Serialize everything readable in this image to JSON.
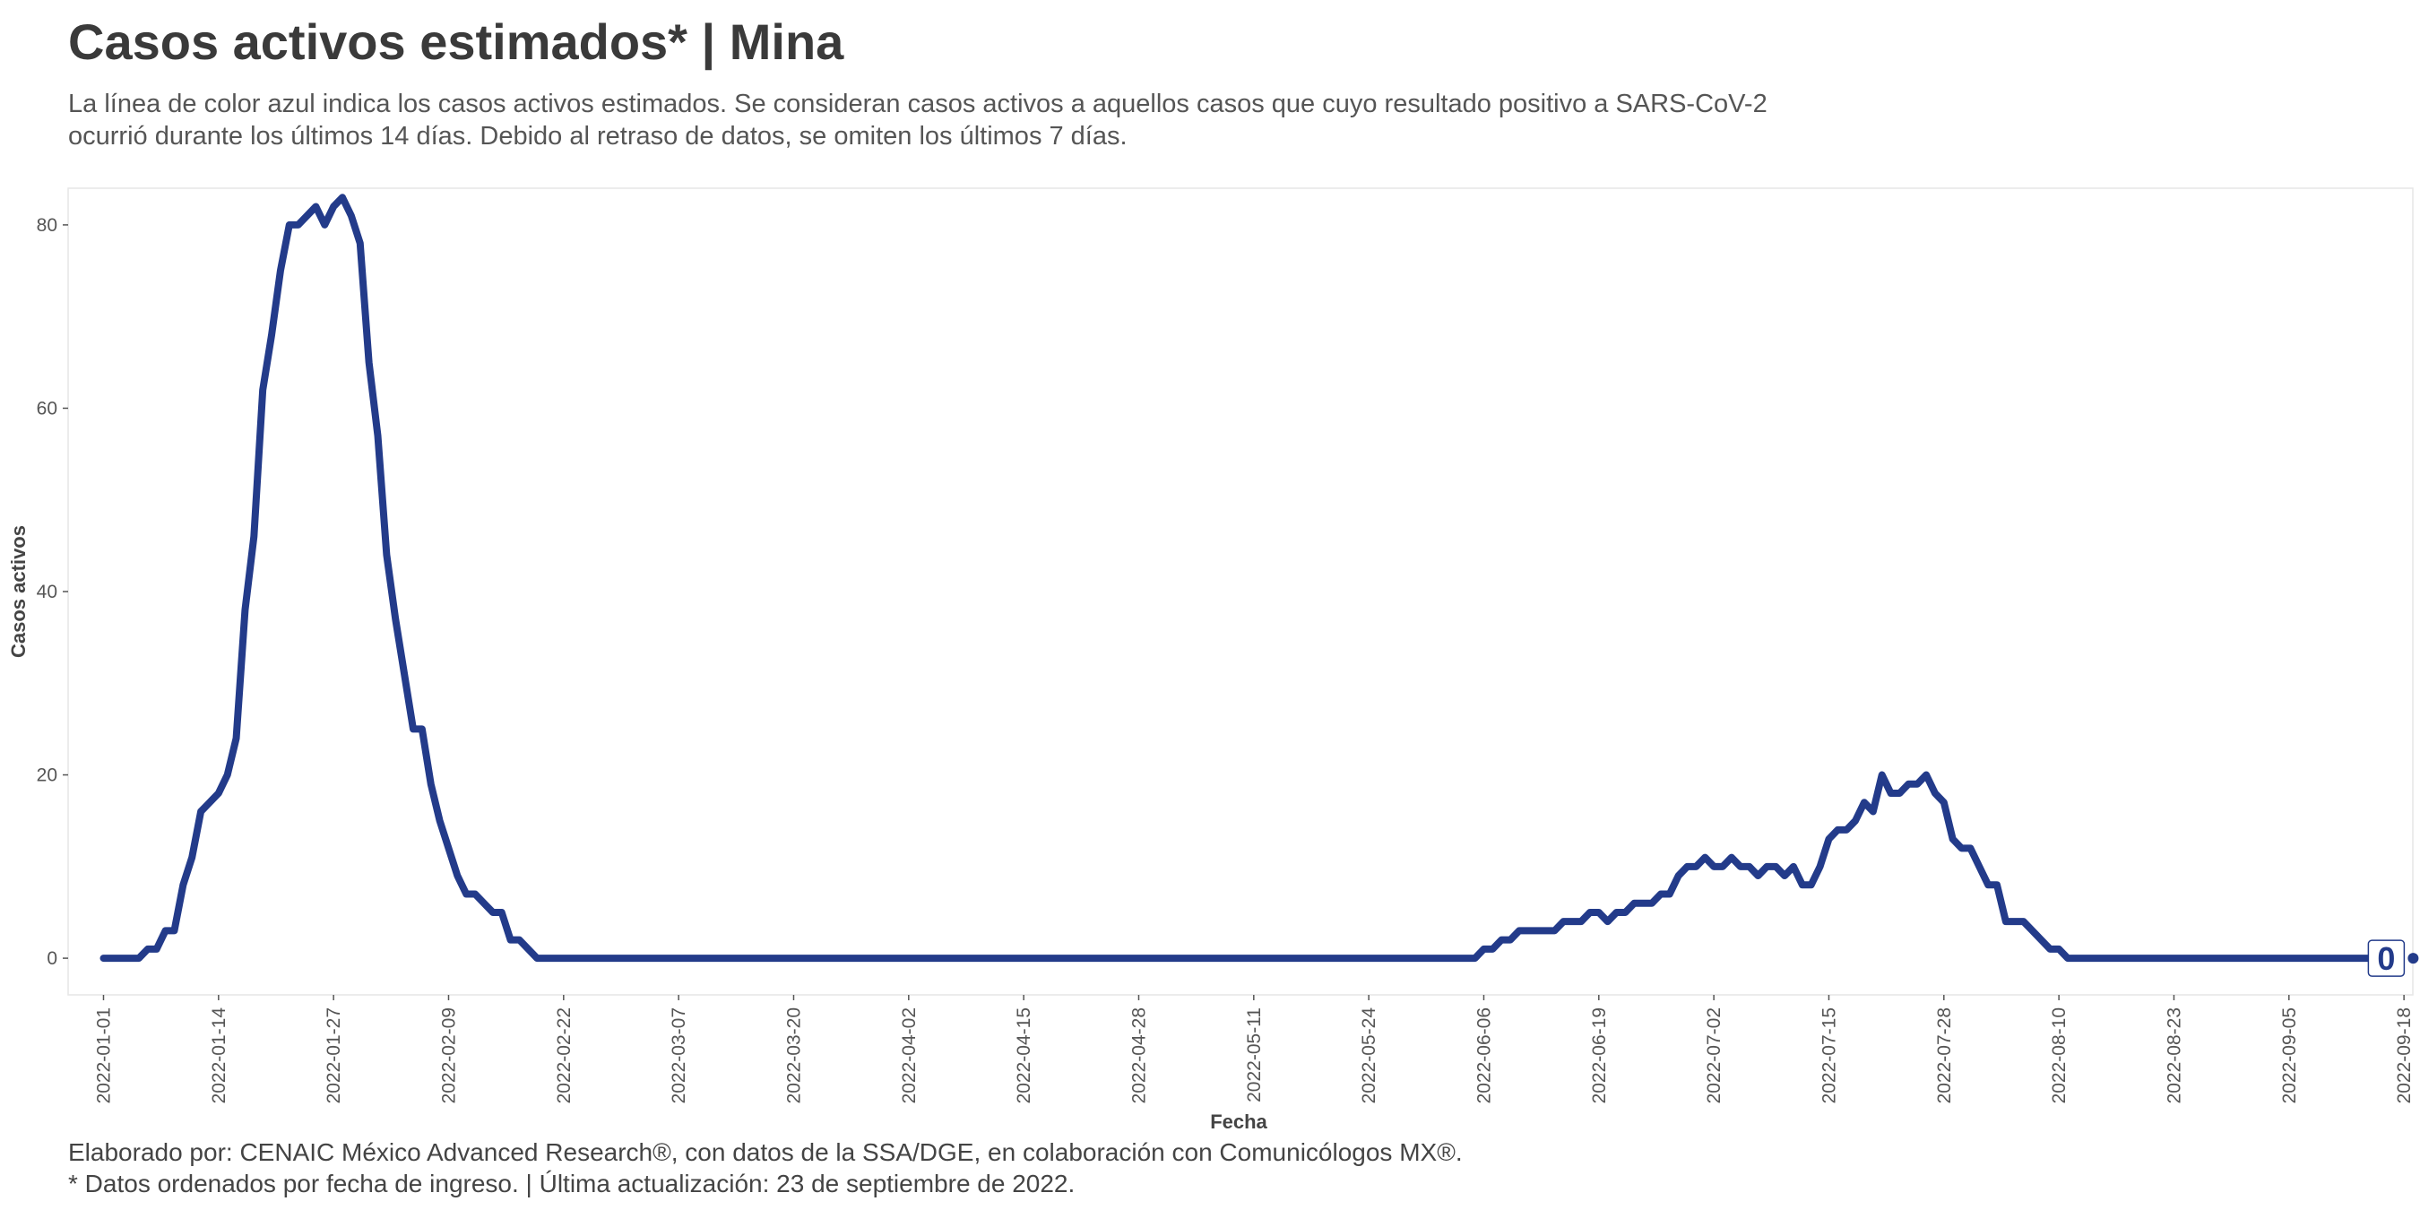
{
  "header": {
    "title": "Casos activos estimados* | Mina",
    "subtitle": "La línea de color azul indica los casos activos estimados. Se consideran casos activos a aquellos casos que cuyo resultado positivo a SARS-CoV-2 ocurrió durante los últimos 14 días. Debido al retraso de datos, se omiten los últimos 7 días."
  },
  "footer": {
    "line1": "Elaborado por: CENAIC México Advanced Research®, con datos de la SSA/DGE, en colaboración con Comunicólogos MX®.",
    "line2": "* Datos ordenados por fecha de ingreso. | Última actualización: 23 de septiembre de 2022."
  },
  "colors": {
    "line": "#233b8a",
    "panel_border": "#e6e6e6",
    "text": "#3d3d3d"
  },
  "chart_data": {
    "type": "line",
    "title": "Casos activos estimados* | Mina",
    "xlabel": "Fecha",
    "ylabel": "Casos activos",
    "ylim": [
      -4,
      84
    ],
    "y_ticks": [
      "0",
      "20",
      "40",
      "60",
      "80"
    ],
    "x_ticks": [
      "2022-01-01",
      "2022-01-14",
      "2022-01-27",
      "2022-02-09",
      "2022-02-22",
      "2022-03-07",
      "2022-03-20",
      "2022-04-02",
      "2022-04-15",
      "2022-04-28",
      "2022-05-11",
      "2022-05-24",
      "2022-06-06",
      "2022-06-19",
      "2022-07-02",
      "2022-07-15",
      "2022-07-28",
      "2022-08-10",
      "2022-08-23",
      "2022-09-05",
      "2022-09-18"
    ],
    "x_range": [
      "2021-12-28",
      "2022-09-19"
    ],
    "grid": false,
    "end_label": "0",
    "series": [
      {
        "points": [
          [
            "2022-01-01",
            0
          ],
          [
            "2022-01-05",
            0
          ],
          [
            "2022-01-06",
            1
          ],
          [
            "2022-01-07",
            1
          ],
          [
            "2022-01-08",
            3
          ],
          [
            "2022-01-09",
            3
          ],
          [
            "2022-01-10",
            8
          ],
          [
            "2022-01-11",
            11
          ],
          [
            "2022-01-12",
            16
          ],
          [
            "2022-01-13",
            17
          ],
          [
            "2022-01-14",
            18
          ],
          [
            "2022-01-15",
            20
          ],
          [
            "2022-01-16",
            24
          ],
          [
            "2022-01-17",
            38
          ],
          [
            "2022-01-18",
            46
          ],
          [
            "2022-01-19",
            62
          ],
          [
            "2022-01-20",
            68
          ],
          [
            "2022-01-21",
            75
          ],
          [
            "2022-01-22",
            80
          ],
          [
            "2022-01-23",
            80
          ],
          [
            "2022-01-24",
            81
          ],
          [
            "2022-01-25",
            82
          ],
          [
            "2022-01-26",
            80
          ],
          [
            "2022-01-27",
            82
          ],
          [
            "2022-01-28",
            83
          ],
          [
            "2022-01-29",
            81
          ],
          [
            "2022-01-30",
            78
          ],
          [
            "2022-01-31",
            65
          ],
          [
            "2022-02-01",
            57
          ],
          [
            "2022-02-02",
            44
          ],
          [
            "2022-02-03",
            37
          ],
          [
            "2022-02-04",
            31
          ],
          [
            "2022-02-05",
            25
          ],
          [
            "2022-02-06",
            25
          ],
          [
            "2022-02-07",
            19
          ],
          [
            "2022-02-08",
            15
          ],
          [
            "2022-02-09",
            12
          ],
          [
            "2022-02-10",
            9
          ],
          [
            "2022-02-11",
            7
          ],
          [
            "2022-02-12",
            7
          ],
          [
            "2022-02-13",
            6
          ],
          [
            "2022-02-14",
            5
          ],
          [
            "2022-02-15",
            5
          ],
          [
            "2022-02-16",
            2
          ],
          [
            "2022-02-17",
            2
          ],
          [
            "2022-02-18",
            1
          ],
          [
            "2022-02-19",
            0
          ],
          [
            "2022-06-05",
            0
          ],
          [
            "2022-06-06",
            1
          ],
          [
            "2022-06-07",
            1
          ],
          [
            "2022-06-08",
            2
          ],
          [
            "2022-06-09",
            2
          ],
          [
            "2022-06-10",
            3
          ],
          [
            "2022-06-11",
            3
          ],
          [
            "2022-06-12",
            3
          ],
          [
            "2022-06-13",
            3
          ],
          [
            "2022-06-14",
            3
          ],
          [
            "2022-06-15",
            4
          ],
          [
            "2022-06-16",
            4
          ],
          [
            "2022-06-17",
            4
          ],
          [
            "2022-06-18",
            5
          ],
          [
            "2022-06-19",
            5
          ],
          [
            "2022-06-20",
            4
          ],
          [
            "2022-06-21",
            5
          ],
          [
            "2022-06-22",
            5
          ],
          [
            "2022-06-23",
            6
          ],
          [
            "2022-06-24",
            6
          ],
          [
            "2022-06-25",
            6
          ],
          [
            "2022-06-26",
            7
          ],
          [
            "2022-06-27",
            7
          ],
          [
            "2022-06-28",
            9
          ],
          [
            "2022-06-29",
            10
          ],
          [
            "2022-06-30",
            10
          ],
          [
            "2022-07-01",
            11
          ],
          [
            "2022-07-02",
            10
          ],
          [
            "2022-07-03",
            10
          ],
          [
            "2022-07-04",
            11
          ],
          [
            "2022-07-05",
            10
          ],
          [
            "2022-07-06",
            10
          ],
          [
            "2022-07-07",
            9
          ],
          [
            "2022-07-08",
            10
          ],
          [
            "2022-07-09",
            10
          ],
          [
            "2022-07-10",
            9
          ],
          [
            "2022-07-11",
            10
          ],
          [
            "2022-07-12",
            8
          ],
          [
            "2022-07-13",
            8
          ],
          [
            "2022-07-14",
            10
          ],
          [
            "2022-07-15",
            13
          ],
          [
            "2022-07-16",
            14
          ],
          [
            "2022-07-17",
            14
          ],
          [
            "2022-07-18",
            15
          ],
          [
            "2022-07-19",
            17
          ],
          [
            "2022-07-20",
            16
          ],
          [
            "2022-07-21",
            20
          ],
          [
            "2022-07-22",
            18
          ],
          [
            "2022-07-23",
            18
          ],
          [
            "2022-07-24",
            19
          ],
          [
            "2022-07-25",
            19
          ],
          [
            "2022-07-26",
            20
          ],
          [
            "2022-07-27",
            18
          ],
          [
            "2022-07-28",
            17
          ],
          [
            "2022-07-29",
            13
          ],
          [
            "2022-07-30",
            12
          ],
          [
            "2022-07-31",
            12
          ],
          [
            "2022-08-01",
            10
          ],
          [
            "2022-08-02",
            8
          ],
          [
            "2022-08-03",
            8
          ],
          [
            "2022-08-04",
            4
          ],
          [
            "2022-08-05",
            4
          ],
          [
            "2022-08-06",
            4
          ],
          [
            "2022-08-07",
            3
          ],
          [
            "2022-08-08",
            2
          ],
          [
            "2022-08-09",
            1
          ],
          [
            "2022-08-10",
            1
          ],
          [
            "2022-08-11",
            0
          ],
          [
            "2022-09-16",
            0
          ]
        ]
      }
    ]
  }
}
